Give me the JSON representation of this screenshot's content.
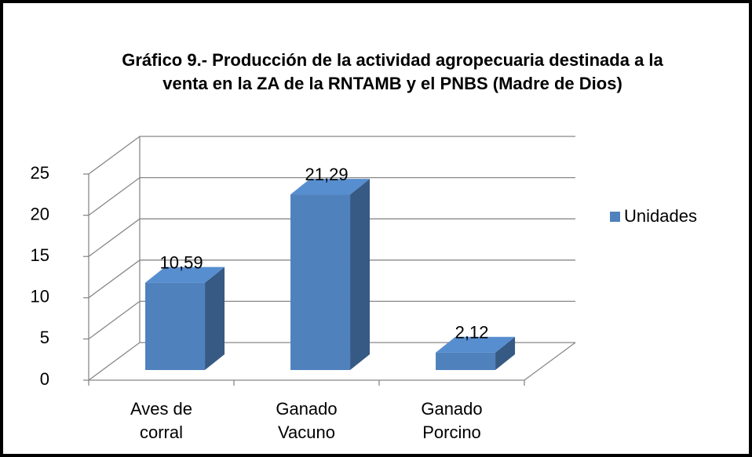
{
  "chart_data": {
    "type": "bar3d",
    "title": "Gráfico 9.- Producción de la actividad agropecuaria destinada a la venta en la ZA de la RNTAMB y el PNBS (Madre de Dios)",
    "categories": [
      "Aves de corral",
      "Ganado Vacuno",
      "Ganado Porcino"
    ],
    "series": [
      {
        "name": "Unidades",
        "color": "#4f81bd",
        "values": [
          10.59,
          21.29,
          2.12
        ],
        "value_labels": [
          "10,59",
          "21,29",
          "2,12"
        ]
      }
    ],
    "ylim": [
      0,
      25
    ],
    "yticks": [
      0,
      5,
      10,
      15,
      20,
      25
    ],
    "grid": true,
    "legend": "right"
  }
}
